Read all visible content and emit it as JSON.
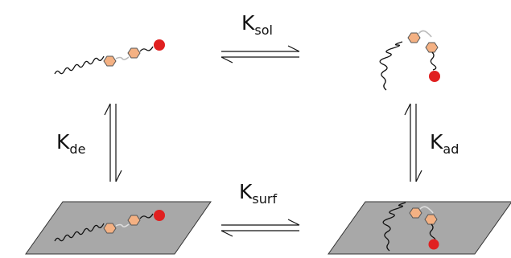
{
  "rate_constants": {
    "solution": {
      "symbol": "K",
      "subscript": "sol"
    },
    "surface": {
      "symbol": "K",
      "subscript": "surf"
    },
    "desorption": {
      "symbol": "K",
      "subscript": "de"
    },
    "adsorption": {
      "symbol": "K",
      "subscript": "ad"
    }
  },
  "colors": {
    "hexagon_fill": "#f4b183",
    "hexagon_stroke": "#555555",
    "head_group": "#e02020",
    "surface_fill": "#a8a8a8",
    "chain": "#111111",
    "arrow": "#111111"
  }
}
